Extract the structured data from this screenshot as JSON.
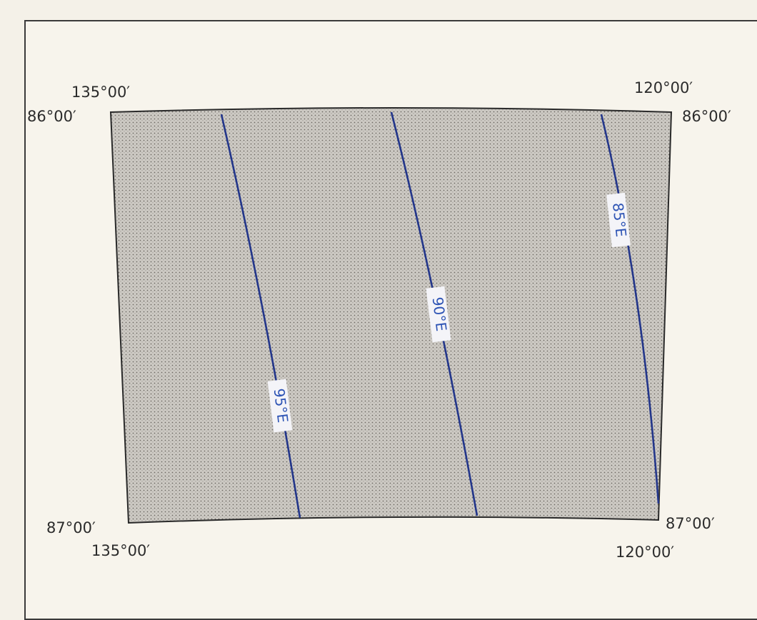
{
  "map": {
    "corners": {
      "top_left_lon": "135°00′",
      "top_left_lat": "86°00′",
      "top_right_lon": "120°00′",
      "top_right_lat": "86°00′",
      "bottom_left_lat": "87°00′",
      "bottom_left_lon": "135°00′",
      "bottom_right_lat": "87°00′",
      "bottom_right_lon": "120°00′"
    },
    "meridians": [
      {
        "label": "95°E"
      },
      {
        "label": "90°E"
      },
      {
        "label": "85°E"
      }
    ],
    "colors": {
      "meridian_line": "#23368a",
      "meridian_label": "#2f55b5",
      "land_fill": "#c9c6c1",
      "frame": "#3a3a3a"
    }
  }
}
